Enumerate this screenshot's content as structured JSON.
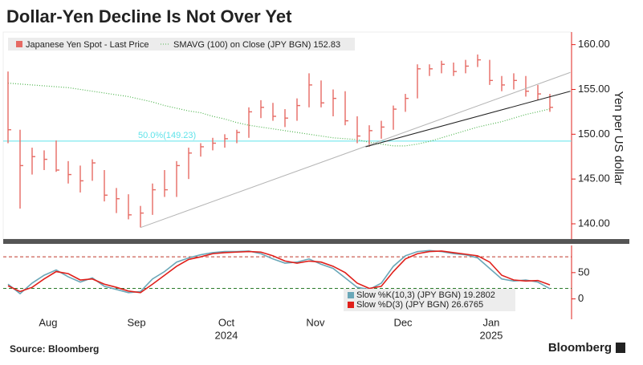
{
  "chart_data": [
    {
      "type": "hlc",
      "title": "Dollar-Yen Decline Is Not Over Yet",
      "name": "Japanese Yen Spot - Last Price",
      "color": "#e66a63",
      "high": [
        157.0,
        150.5,
        148.5,
        148.2,
        149.3,
        147.0,
        146.5,
        147.2,
        146.0,
        144.0,
        143.3,
        142.0,
        144.5,
        146.0,
        147.0,
        148.5,
        149.0,
        149.6,
        150.0,
        150.5,
        153.0,
        153.8,
        153.5,
        152.8,
        154.0,
        156.8,
        156.0,
        155.0,
        154.8,
        152.0,
        151.0,
        151.5,
        153.2,
        154.5,
        157.8,
        157.8,
        158.2,
        158.0,
        158.3,
        158.9,
        158.3,
        156.5,
        156.8,
        156.5,
        155.5,
        154.5
      ],
      "low": [
        149.0,
        141.7,
        145.5,
        146.0,
        145.8,
        144.5,
        143.5,
        144.8,
        142.5,
        141.2,
        140.5,
        139.6,
        141.0,
        143.0,
        143.0,
        145.0,
        147.5,
        148.2,
        148.5,
        149.0,
        149.6,
        151.8,
        151.5,
        150.8,
        151.5,
        153.0,
        153.0,
        152.0,
        151.0,
        149.0,
        148.6,
        149.5,
        150.5,
        152.5,
        154.0,
        156.5,
        156.8,
        156.5,
        156.8,
        157.5,
        155.5,
        154.8,
        155.0,
        154.2,
        153.8,
        152.5
      ],
      "close": [
        150.5,
        146.5,
        147.5,
        147.2,
        146.0,
        145.5,
        144.8,
        146.8,
        143.2,
        142.8,
        141.0,
        141.2,
        143.8,
        143.8,
        146.5,
        147.9,
        148.6,
        149.0,
        149.5,
        150.2,
        152.5,
        153.0,
        152.0,
        151.8,
        153.2,
        155.5,
        153.5,
        154.0,
        151.5,
        149.8,
        150.4,
        150.8,
        152.8,
        154.0,
        157.3,
        157.3,
        157.8,
        157.0,
        157.6,
        158.3,
        156.0,
        155.5,
        156.0,
        154.8,
        154.5,
        153.0
      ],
      "overlays": [
        {
          "name": "SMAVG (100) on Close (JPY BGN) 152.83",
          "color": "#4fb54f",
          "values": [
            155.7,
            155.6,
            155.5,
            155.4,
            155.3,
            155.2,
            155.0,
            154.8,
            154.6,
            154.4,
            154.2,
            153.9,
            153.6,
            153.2,
            152.9,
            152.6,
            152.4,
            152.0,
            151.7,
            151.3,
            151.0,
            150.8,
            150.6,
            150.4,
            150.2,
            150.0,
            149.8,
            149.6,
            149.5,
            149.4,
            149.1,
            148.9,
            148.7,
            148.7,
            148.9,
            149.2,
            149.6,
            150.0,
            150.4,
            150.8,
            151.1,
            151.4,
            151.8,
            152.2,
            152.5,
            152.83
          ]
        }
      ],
      "levels": [
        {
          "value": 149.23,
          "label": "50.0%(149.23)",
          "color": "#5fe3ea"
        }
      ],
      "trendlines": [
        {
          "x": [
            11,
            46.7
          ],
          "y": [
            139.58,
            156.9
          ],
          "color": "#b5b5b5"
        },
        {
          "x": [
            29.7,
            46.7
          ],
          "y": [
            148.6,
            154.8
          ],
          "color": "#222222"
        }
      ],
      "xlim": [
        -0.4,
        46.8
      ],
      "ylim": [
        138.3,
        161.4
      ],
      "yticks": [
        {
          "value": 140,
          "label": "140.00"
        },
        {
          "value": 145,
          "label": "145.00"
        },
        {
          "value": 150,
          "label": "150.00"
        },
        {
          "value": 155,
          "label": "155.00"
        },
        {
          "value": 160,
          "label": "160.00"
        }
      ],
      "ylabel": "Yen per US dollar"
    },
    {
      "type": "line",
      "series": [
        {
          "name": "Slow %K(10,3) (JPY BGN) 19.2802",
          "color": "#6aa7b8",
          "values": [
            28,
            10,
            30,
            45,
            55,
            42,
            32,
            40,
            24,
            18,
            12,
            14,
            38,
            52,
            70,
            78,
            84,
            88,
            90,
            90,
            91,
            86,
            76,
            68,
            70,
            76,
            66,
            58,
            40,
            22,
            18,
            30,
            62,
            82,
            90,
            92,
            90,
            86,
            84,
            78,
            58,
            38,
            34,
            36,
            32,
            19.28
          ]
        },
        {
          "name": "Slow %D(3) (JPY BGN) 26.6765",
          "color": "#e0201b",
          "values": [
            25,
            14,
            22,
            38,
            52,
            48,
            36,
            38,
            28,
            22,
            15,
            12,
            28,
            45,
            62,
            75,
            80,
            86,
            88,
            89,
            90,
            89,
            82,
            72,
            68,
            72,
            70,
            62,
            50,
            30,
            20,
            24,
            52,
            76,
            86,
            90,
            91,
            88,
            85,
            82,
            70,
            45,
            36,
            34,
            35,
            26.68
          ]
        }
      ],
      "levels": [
        {
          "value": 80,
          "color": "#c0392b"
        },
        {
          "value": 20,
          "color": "#2a7a2a"
        }
      ],
      "xlim": [
        -0.4,
        46.8
      ],
      "ylim": [
        -38.7,
        101.6
      ],
      "yticks": [
        0,
        50
      ],
      "xticks": [
        {
          "value": 3.33,
          "label": "Aug"
        },
        {
          "value": 10.67,
          "label": "Sep"
        },
        {
          "value": 18.13,
          "label": "Oct"
        },
        {
          "value": 25.53,
          "label": "Nov"
        },
        {
          "value": 32.8,
          "label": "Dec"
        },
        {
          "value": 40.13,
          "label": "Jan"
        }
      ],
      "year_ticks": [
        {
          "value": 18.13,
          "label": "2024"
        },
        {
          "value": 40.13,
          "label": "2025"
        }
      ]
    }
  ],
  "footer": {
    "source": "Source: Bloomberg",
    "brand": "Bloomberg"
  }
}
